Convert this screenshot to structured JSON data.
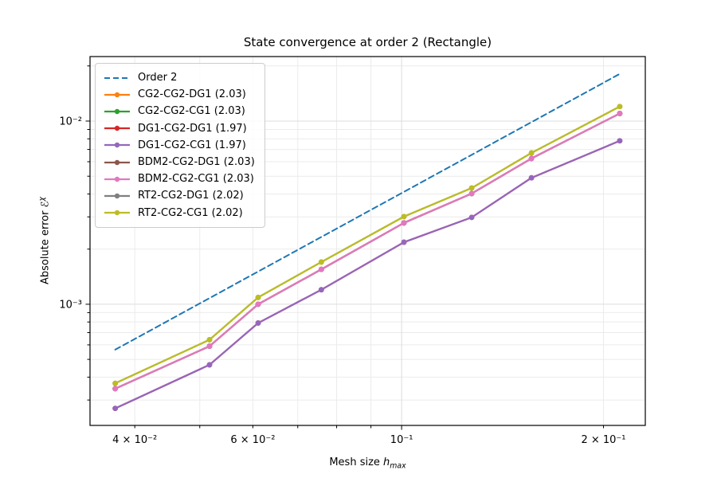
{
  "title": "State convergence at order 2 (Rectangle)",
  "axes": {
    "xlabel_prefix": "Mesh size ",
    "xlabel_var": "h",
    "xlabel_sub": "max",
    "ylabel_prefix": "Absolute error ",
    "ylabel_symbol": "ℰ",
    "ylabel_sup": "χ",
    "xlim": [
      0.0343,
      0.2309
    ],
    "ylim": [
      0.000218,
      0.0225
    ],
    "x_ticks": [
      {
        "value": 0.04,
        "label": "4 × 10⁻²",
        "major": false
      },
      {
        "value": 0.05,
        "label": "",
        "major": false
      },
      {
        "value": 0.06,
        "label": "6 × 10⁻²",
        "major": false
      },
      {
        "value": 0.07,
        "label": "",
        "major": false
      },
      {
        "value": 0.08,
        "label": "",
        "major": false
      },
      {
        "value": 0.09,
        "label": "",
        "major": false
      },
      {
        "value": 0.1,
        "label": "10⁻¹",
        "major": true
      },
      {
        "value": 0.2,
        "label": "2 × 10⁻¹",
        "major": false
      }
    ],
    "y_ticks": [
      {
        "value": 0.0003,
        "label": "",
        "major": false
      },
      {
        "value": 0.0004,
        "label": "",
        "major": false
      },
      {
        "value": 0.0005,
        "label": "",
        "major": false
      },
      {
        "value": 0.0006,
        "label": "",
        "major": false
      },
      {
        "value": 0.0007,
        "label": "",
        "major": false
      },
      {
        "value": 0.0008,
        "label": "",
        "major": false
      },
      {
        "value": 0.0009,
        "label": "",
        "major": false
      },
      {
        "value": 0.001,
        "label": "10⁻³",
        "major": true
      },
      {
        "value": 0.002,
        "label": "",
        "major": false
      },
      {
        "value": 0.003,
        "label": "",
        "major": false
      },
      {
        "value": 0.004,
        "label": "",
        "major": false
      },
      {
        "value": 0.005,
        "label": "",
        "major": false
      },
      {
        "value": 0.006,
        "label": "",
        "major": false
      },
      {
        "value": 0.007,
        "label": "",
        "major": false
      },
      {
        "value": 0.008,
        "label": "",
        "major": false
      },
      {
        "value": 0.009,
        "label": "",
        "major": false
      },
      {
        "value": 0.01,
        "label": "10⁻²",
        "major": true
      },
      {
        "value": 0.02,
        "label": "",
        "major": false
      }
    ],
    "grid_major_color": "#dcdcdc",
    "grid_minor_color": "#ebebeb"
  },
  "chart_data": {
    "type": "line",
    "log_x": true,
    "log_y": true,
    "title": "State convergence at order 2 (Rectangle)",
    "xlabel": "Mesh size h_max",
    "ylabel": "Absolute error E^chi",
    "legend_position": "upper left",
    "grid": "both",
    "x": [
      0.0374,
      0.0517,
      0.0611,
      0.0759,
      0.1008,
      0.1272,
      0.1562,
      0.2115
    ],
    "series": [
      {
        "name": "Order 2",
        "color": "#1f77b4",
        "dashed": true,
        "marker": false,
        "x": [
          0.0374,
          0.2115
        ],
        "y": [
          0.000565,
          0.0181
        ]
      },
      {
        "name": "CG2-CG2-DG1 (2.03)",
        "color": "#ff7f0e",
        "dashed": false,
        "marker": true,
        "y": [
          0.000346,
          0.00059,
          0.001,
          0.00155,
          0.00278,
          0.00402,
          0.00625,
          0.011
        ]
      },
      {
        "name": "CG2-CG2-CG1 (2.03)",
        "color": "#2ca02c",
        "dashed": false,
        "marker": true,
        "y": [
          0.000346,
          0.00059,
          0.001,
          0.00155,
          0.00278,
          0.00402,
          0.00625,
          0.011
        ]
      },
      {
        "name": "DG1-CG2-DG1 (1.97)",
        "color": "#d62728",
        "dashed": false,
        "marker": true,
        "y": [
          0.00027,
          0.000467,
          0.00079,
          0.0012,
          0.00218,
          0.00298,
          0.0049,
          0.0078
        ]
      },
      {
        "name": "DG1-CG2-CG1 (1.97)",
        "color": "#9467bd",
        "dashed": false,
        "marker": true,
        "y": [
          0.00027,
          0.000467,
          0.00079,
          0.0012,
          0.00218,
          0.00298,
          0.0049,
          0.0078
        ]
      },
      {
        "name": "BDM2-CG2-DG1 (2.03)",
        "color": "#8c564b",
        "dashed": false,
        "marker": true,
        "y": [
          0.000346,
          0.00059,
          0.001,
          0.00155,
          0.00278,
          0.00402,
          0.00625,
          0.011
        ]
      },
      {
        "name": "BDM2-CG2-CG1 (2.03)",
        "color": "#e377c2",
        "dashed": false,
        "marker": true,
        "y": [
          0.000346,
          0.00059,
          0.001,
          0.00155,
          0.00278,
          0.00402,
          0.00625,
          0.011
        ]
      },
      {
        "name": "RT2-CG2-DG1 (2.02)",
        "color": "#7f7f7f",
        "dashed": false,
        "marker": true,
        "y": [
          0.00037,
          0.00064,
          0.00109,
          0.0017,
          0.00301,
          0.00431,
          0.0067,
          0.012
        ]
      },
      {
        "name": "RT2-CG2-CG1 (2.02)",
        "color": "#bcbd22",
        "dashed": false,
        "marker": true,
        "y": [
          0.00037,
          0.00064,
          0.00109,
          0.0017,
          0.00301,
          0.00431,
          0.0067,
          0.012
        ]
      }
    ]
  }
}
